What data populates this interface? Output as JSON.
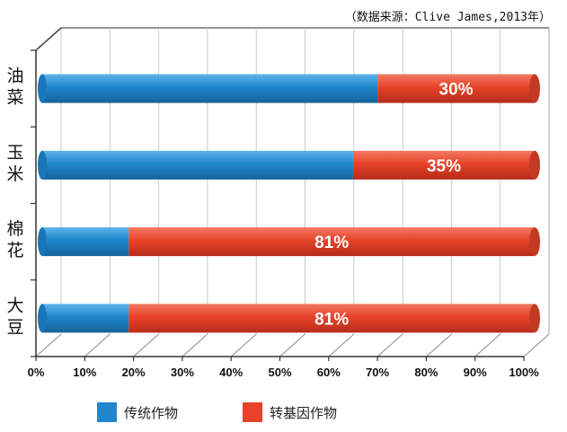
{
  "source_note": "（数据来源：Clive James,2013年）",
  "colors": {
    "traditional": "#1f86cc",
    "gm": "#e8432a"
  },
  "legend": [
    {
      "label": "传统作物",
      "color": "#1f86cc"
    },
    {
      "label": "转基因作物",
      "color": "#e8432a"
    }
  ],
  "chart_data": {
    "type": "bar",
    "orientation": "horizontal",
    "stacked": true,
    "categories": [
      "油菜",
      "玉米",
      "棉花",
      "大豆"
    ],
    "series": [
      {
        "name": "传统作物",
        "values": [
          70,
          65,
          19,
          19
        ]
      },
      {
        "name": "转基因作物",
        "values": [
          30,
          35,
          81,
          81
        ]
      }
    ],
    "data_labels": [
      "30%",
      "35%",
      "81%",
      "81%"
    ],
    "xlim": [
      0,
      100
    ],
    "x_ticks": [
      "0%",
      "10%",
      "20%",
      "30%",
      "40%",
      "50%",
      "60%",
      "70%",
      "80%",
      "90%",
      "100%"
    ],
    "grid": true,
    "legend_position": "bottom"
  }
}
